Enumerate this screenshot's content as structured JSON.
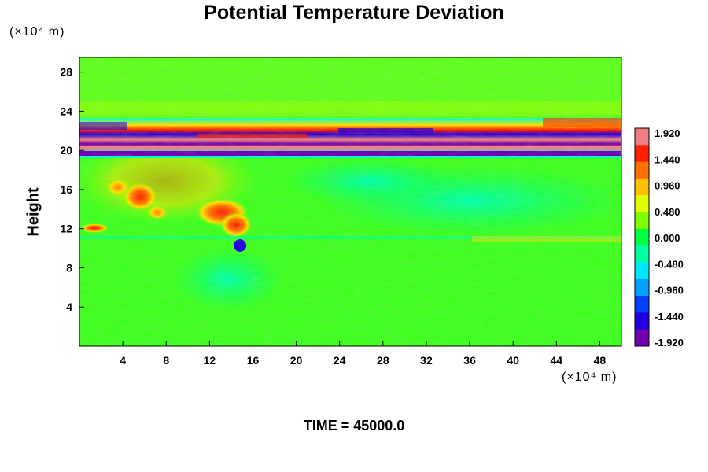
{
  "title": "Potential Temperature Deviation",
  "y_unit": "(×10⁴ m)",
  "x_unit": "(×10⁴ m)",
  "ylabel": "Height",
  "time_label": "TIME = 45000.0",
  "chart_data": {
    "type": "heatmap",
    "title": "Potential Temperature Deviation",
    "xlabel": "",
    "ylabel": "Height",
    "x_unit": "×10⁴ m",
    "y_unit": "×10⁴ m",
    "xlim": [
      0,
      50
    ],
    "ylim": [
      0,
      29.5
    ],
    "x_ticks": [
      4,
      8,
      12,
      16,
      20,
      24,
      28,
      32,
      36,
      40,
      44,
      48
    ],
    "y_ticks": [
      4,
      8,
      12,
      16,
      20,
      24,
      28
    ],
    "colorbar": {
      "labels": [
        "1.920",
        "1.440",
        "0.960",
        "0.480",
        "0.000",
        "-0.480",
        "-0.960",
        "-1.440",
        "-1.920"
      ],
      "min": -1.92,
      "max": 1.92,
      "colors": [
        "#f08080",
        "#ff2000",
        "#ff7000",
        "#ffc000",
        "#e0ff00",
        "#80ff00",
        "#00ff40",
        "#00ffa0",
        "#00e8ff",
        "#00a0ff",
        "#0040ff",
        "#2000e0",
        "#7000b0"
      ]
    },
    "features": [
      {
        "label": "stratospheric band",
        "y_range": [
          19.5,
          23.5
        ],
        "values": "strong alternating -1.92 to 1.92"
      },
      {
        "label": "warm anomaly",
        "x": [
          10,
          17
        ],
        "y": [
          11,
          15
        ],
        "value": 1.6
      },
      {
        "label": "warm patches",
        "x": [
          3,
          9
        ],
        "y": [
          14,
          18
        ],
        "value": 1.0
      },
      {
        "label": "cold region",
        "x": [
          25,
          50
        ],
        "y": [
          12,
          18
        ],
        "value": -0.6
      }
    ],
    "time": 45000.0
  }
}
